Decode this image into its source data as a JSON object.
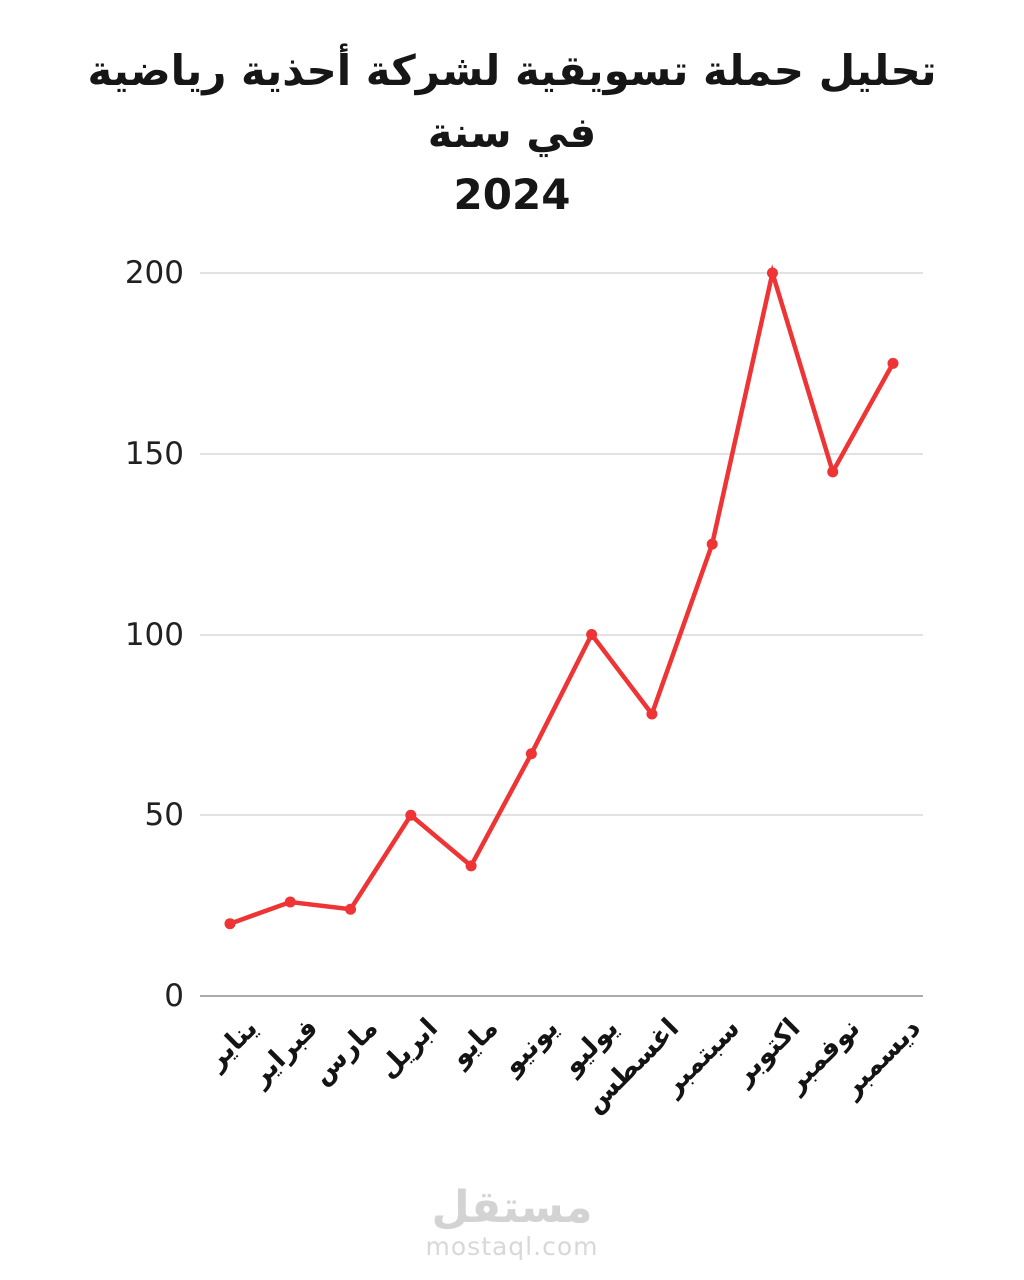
{
  "title": {
    "line1": "تحليل حملة تسويقية لشركة أحذية رياضية في سنة",
    "line2": "2024"
  },
  "chart_data": {
    "type": "line",
    "title": "تحليل حملة تسويقية لشركة أحذية رياضية في سنة 2024",
    "categories": [
      "يناير",
      "فبراير",
      "مارس",
      "ابريل",
      "مايو",
      "يونيو",
      "يوليو",
      "اغسطس",
      "سبتمبر",
      "اكتوبر",
      "نوفمبر",
      "ديسمبر"
    ],
    "values": [
      20,
      26,
      24,
      50,
      36,
      67,
      100,
      78,
      125,
      200,
      145,
      175
    ],
    "xlabel": "",
    "ylabel": "",
    "ylim": [
      0,
      200
    ],
    "yticks": [
      0,
      50,
      100,
      150,
      200
    ],
    "grid": true,
    "legend": false,
    "line_color": "#ee3434",
    "point_color": "#ee3434",
    "gridline_color": "#e2e2e2"
  },
  "watermark": {
    "logo_text": "مستقل",
    "domain": "mostaql.com"
  }
}
